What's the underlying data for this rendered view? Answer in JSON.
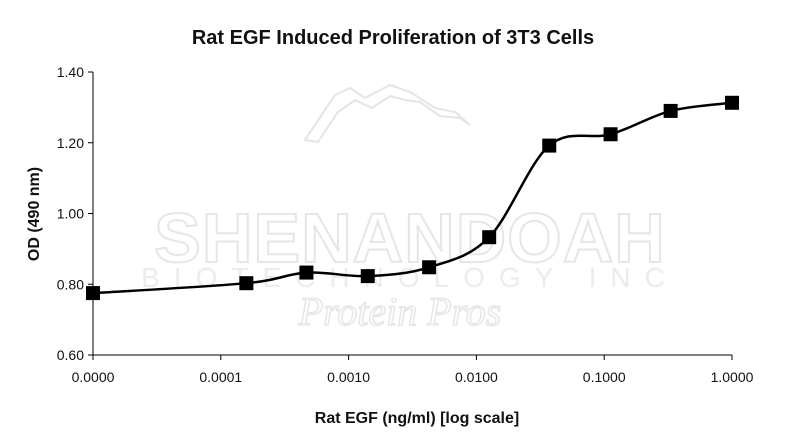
{
  "chart_data": {
    "type": "line",
    "title": "Rat EGF Induced Proliferation of 3T3 Cells",
    "xlabel": "Rat EGF (ng/ml) [log scale]",
    "ylabel": "OD (490 nm)",
    "x_scale": "log",
    "x_tick_labels": [
      "0.0000",
      "0.0001",
      "0.0010",
      "0.0100",
      "0.1000",
      "1.0000"
    ],
    "y_tick_labels": [
      "0.60",
      "0.80",
      "1.00",
      "1.20",
      "1.40"
    ],
    "ylim": [
      0.6,
      1.4
    ],
    "grid": false,
    "legend": "none",
    "series": [
      {
        "x_log10": [
          -5.0,
          -3.8,
          -3.33,
          -2.85,
          -2.37,
          -1.9,
          -1.43,
          -0.95,
          -0.48,
          0.0
        ],
        "values": [
          0.775,
          0.803,
          0.833,
          0.823,
          0.848,
          0.933,
          1.192,
          1.224,
          1.29,
          1.313
        ]
      }
    ],
    "watermark": {
      "line1": "SHENANDOAH",
      "line2": "BIOTECHNOLOGY INC",
      "line3": "Protein Pros"
    }
  }
}
